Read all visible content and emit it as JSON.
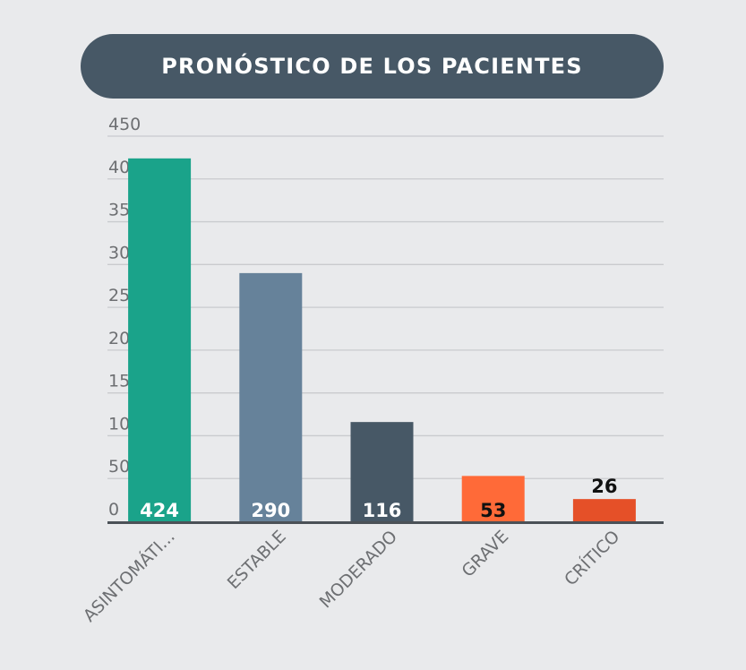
{
  "title": "PRONÓSTICO DE LOS PACIENTES",
  "chart_data": {
    "type": "bar",
    "title": "PRONÓSTICO DE LOS PACIENTES",
    "categories": [
      "ASINTOMÁTI...",
      "ESTABLE",
      "MODERADO",
      "GRAVE",
      "CRÍTICO"
    ],
    "values": [
      424,
      290,
      116,
      53,
      26
    ],
    "colors": [
      "#1aa38a",
      "#66829a",
      "#475866",
      "#ff6a38",
      "#e55028"
    ],
    "label_colors": [
      "#ffffff",
      "#ffffff",
      "#ffffff",
      "#111111",
      "#111111"
    ],
    "label_position": [
      "inside",
      "inside",
      "inside",
      "inside",
      "above"
    ],
    "ylim": [
      0,
      450
    ],
    "yticks": [
      0,
      50,
      100,
      150,
      200,
      250,
      300,
      350,
      400,
      450
    ],
    "grid": true,
    "xlabel": "",
    "ylabel": ""
  }
}
